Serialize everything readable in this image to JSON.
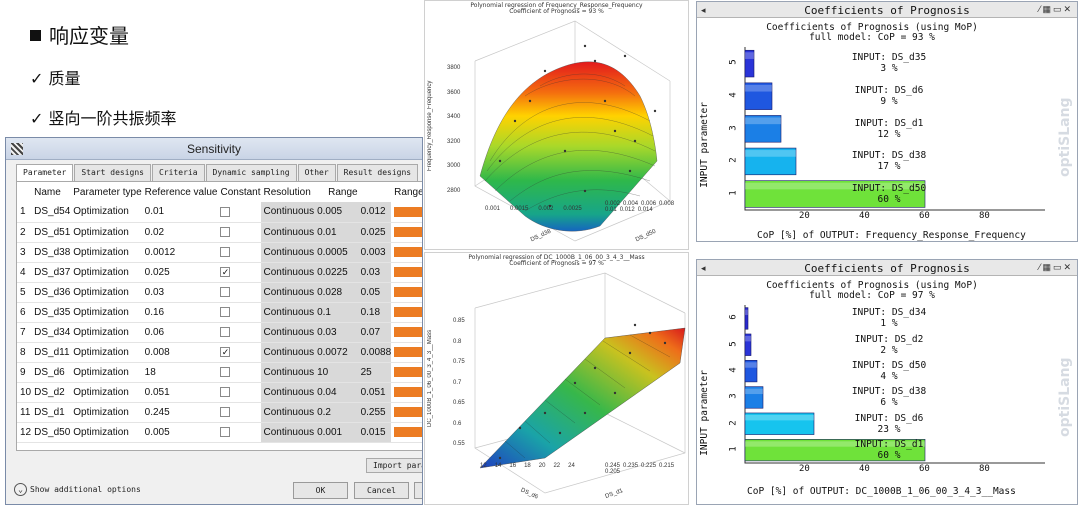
{
  "slide": {
    "heading": "响应变量",
    "bullets": [
      "✓ 质量",
      "✓ 竖向一阶共振频率"
    ]
  },
  "dialog": {
    "title": "Sensitivity",
    "tabs": [
      "Parameter",
      "Start designs",
      "Criteria",
      "Dynamic sampling",
      "Other",
      "Result designs"
    ],
    "columns": [
      "",
      "Name",
      "Parameter type",
      "Reference value",
      "Constant",
      "Resolution",
      "Range",
      "",
      "Range p"
    ],
    "rows": [
      {
        "n": "1",
        "name": "DS_d54",
        "type": "Optimization",
        "ref": "0.01",
        "constant": false,
        "res": "Continuous",
        "min": "0.005",
        "max": "0.012"
      },
      {
        "n": "2",
        "name": "DS_d51",
        "type": "Optimization",
        "ref": "0.02",
        "constant": false,
        "res": "Continuous",
        "min": "0.01",
        "max": "0.025"
      },
      {
        "n": "3",
        "name": "DS_d38",
        "type": "Optimization",
        "ref": "0.0012",
        "constant": false,
        "res": "Continuous",
        "min": "0.0005",
        "max": "0.003"
      },
      {
        "n": "4",
        "name": "DS_d37",
        "type": "Optimization",
        "ref": "0.025",
        "constant": true,
        "res": "Continuous",
        "min": "0.0225",
        "max": "0.03"
      },
      {
        "n": "5",
        "name": "DS_d36",
        "type": "Optimization",
        "ref": "0.03",
        "constant": false,
        "res": "Continuous",
        "min": "0.028",
        "max": "0.05"
      },
      {
        "n": "6",
        "name": "DS_d35",
        "type": "Optimization",
        "ref": "0.16",
        "constant": false,
        "res": "Continuous",
        "min": "0.1",
        "max": "0.18"
      },
      {
        "n": "7",
        "name": "DS_d34",
        "type": "Optimization",
        "ref": "0.06",
        "constant": false,
        "res": "Continuous",
        "min": "0.03",
        "max": "0.07"
      },
      {
        "n": "8",
        "name": "DS_d11",
        "type": "Optimization",
        "ref": "0.008",
        "constant": true,
        "res": "Continuous",
        "min": "0.0072",
        "max": "0.0088"
      },
      {
        "n": "9",
        "name": "DS_d6",
        "type": "Optimization",
        "ref": "18",
        "constant": false,
        "res": "Continuous",
        "min": "10",
        "max": "25"
      },
      {
        "n": "10",
        "name": "DS_d2",
        "type": "Optimization",
        "ref": "0.051",
        "constant": false,
        "res": "Continuous",
        "min": "0.04",
        "max": "0.051"
      },
      {
        "n": "11",
        "name": "DS_d1",
        "type": "Optimization",
        "ref": "0.245",
        "constant": false,
        "res": "Continuous",
        "min": "0.2",
        "max": "0.255"
      },
      {
        "n": "12",
        "name": "DS_d50",
        "type": "Optimization",
        "ref": "0.005",
        "constant": false,
        "res": "Continuous",
        "min": "0.001",
        "max": "0.015"
      }
    ],
    "import_label": "Import paran",
    "show_options": "Show additional options",
    "ok": "OK",
    "cancel": "Cancel",
    "bar_color": "#ec7c23"
  },
  "plot_top": {
    "title_line1": "Polynomial regression of Frequency_Response_Frequency",
    "title_line2": "Coefficient of Prognosis  =     93 %",
    "zlabel": "Frequency_Response_Frequency",
    "zticks": [
      "3800",
      "3600",
      "3400",
      "3200",
      "3000",
      "2800"
    ],
    "xlabel": "DS_d38",
    "xticks": [
      "0.001",
      "0.0015",
      "0.002",
      "0.0025"
    ],
    "ylabel": "DS_d50",
    "yticks": [
      "0.014",
      "0.012",
      "0.01",
      "0.008",
      "0.006",
      "0.004",
      "0.002"
    ]
  },
  "plot_bottom": {
    "title_line1": "Polynomial regression of DC_1000B_1_06_00_3_4_3__Mass",
    "title_line2": "Coefficient of Prognosis  =     97 %",
    "zlabel": "DC_1000B_1_06_00_3_4_3__Mass",
    "zticks": [
      "0.85",
      "0.8",
      "0.75",
      "0.7",
      "0.65",
      "0.6",
      "0.55"
    ],
    "xlabel": "DS_d6",
    "xticks": [
      "12",
      "14",
      "16",
      "18",
      "20",
      "22",
      "24"
    ],
    "ylabel": "DS_d1",
    "yticks": [
      "0.205",
      "0.215",
      "0.225",
      "0.235",
      "0.245"
    ]
  },
  "cop_top": {
    "title": "Coefficients of Prognosis",
    "subtitle1": "Coefficients of Prognosis (using MoP)",
    "subtitle2": "full model: CoP =    93 %",
    "ylabel": "INPUT parameter",
    "xlabel": "CoP [%] of OUTPUT: Frequency_Response_Frequency",
    "watermark": "optiSLang",
    "xticks": [
      "20",
      "40",
      "60",
      "80"
    ],
    "bars": [
      {
        "rank": "5",
        "input": "INPUT: DS_d35",
        "pct": "3 %",
        "value": 3,
        "color": "#2a34d8"
      },
      {
        "rank": "4",
        "input": "INPUT: DS_d6",
        "pct": "9 %",
        "value": 9,
        "color": "#1f57e0"
      },
      {
        "rank": "3",
        "input": "INPUT: DS_d1",
        "pct": "12 %",
        "value": 12,
        "color": "#1b7fe6"
      },
      {
        "rank": "2",
        "input": "INPUT: DS_d38",
        "pct": "17 %",
        "value": 17,
        "color": "#16b3ee"
      },
      {
        "rank": "1",
        "input": "INPUT: DS_d50",
        "pct": "60 %",
        "value": 60,
        "color": "#6fe23a"
      }
    ]
  },
  "cop_bottom": {
    "title": "Coefficients of Prognosis",
    "subtitle1": "Coefficients of Prognosis (using MoP)",
    "subtitle2": "full model: CoP =    97 %",
    "ylabel": "INPUT parameter",
    "xlabel": "CoP [%] of OUTPUT: DC_1000B_1_06_00_3_4_3__Mass",
    "watermark": "optiSLang",
    "xticks": [
      "20",
      "40",
      "60",
      "80"
    ],
    "bars": [
      {
        "rank": "6",
        "input": "INPUT: DS_d34",
        "pct": "1 %",
        "value": 1,
        "color": "#2a2ad0"
      },
      {
        "rank": "5",
        "input": "INPUT: DS_d2",
        "pct": "2 %",
        "value": 2,
        "color": "#2a34d8"
      },
      {
        "rank": "4",
        "input": "INPUT: DS_d50",
        "pct": "4 %",
        "value": 4,
        "color": "#1f57e0"
      },
      {
        "rank": "3",
        "input": "INPUT: DS_d38",
        "pct": "6 %",
        "value": 6,
        "color": "#1b7fe6"
      },
      {
        "rank": "2",
        "input": "INPUT: DS_d6",
        "pct": "23 %",
        "value": 23,
        "color": "#16c4ee"
      },
      {
        "rank": "1",
        "input": "INPUT: DS_d1",
        "pct": "60 %",
        "value": 60,
        "color": "#6fe23a"
      }
    ]
  }
}
